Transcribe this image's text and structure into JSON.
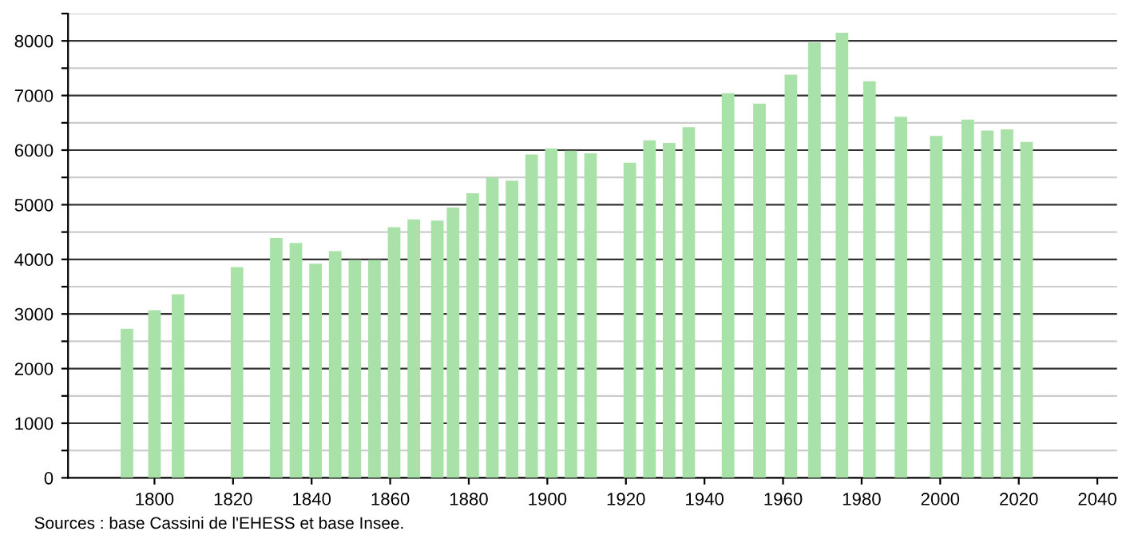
{
  "chart_data": {
    "type": "bar",
    "color": "#a8e2a8",
    "x": [
      1793,
      1800,
      1806,
      1821,
      1831,
      1836,
      1841,
      1846,
      1851,
      1856,
      1861,
      1866,
      1872,
      1876,
      1881,
      1886,
      1891,
      1896,
      1901,
      1906,
      1911,
      1921,
      1926,
      1931,
      1936,
      1946,
      1954,
      1962,
      1968,
      1975,
      1982,
      1990,
      1999,
      2007,
      2012,
      2017,
      2022
    ],
    "values": [
      2730,
      3070,
      3360,
      3860,
      4390,
      4300,
      3920,
      4150,
      3990,
      3990,
      4590,
      4730,
      4710,
      4950,
      5210,
      5500,
      5440,
      5920,
      6030,
      5990,
      5940,
      5770,
      6180,
      6130,
      6420,
      7040,
      6850,
      7380,
      7970,
      8150,
      7260,
      6610,
      6260,
      6560,
      6360,
      6380,
      6150
    ],
    "xlim": [
      1778,
      2045
    ],
    "xticks": [
      1800,
      1820,
      1840,
      1860,
      1880,
      1900,
      1920,
      1940,
      1960,
      1980,
      2000,
      2020,
      2040
    ],
    "ylim": [
      0,
      8500
    ],
    "yticks": [
      0,
      {
        "value": 500,
        "label": null
      },
      1000,
      {
        "value": 1500,
        "label": null
      },
      2000,
      {
        "value": 2500,
        "label": null
      },
      3000,
      {
        "value": 3500,
        "label": null
      },
      4000,
      {
        "value": 4500,
        "label": null
      },
      5000,
      {
        "value": 5500,
        "label": null
      },
      6000,
      {
        "value": 6500,
        "label": null
      },
      7000,
      {
        "value": 7500,
        "label": null
      },
      8000,
      {
        "value": 8500,
        "label": null
      }
    ],
    "grid": "y",
    "annotations": [
      "Sources : base Cassini de l'EHESS et base Insee."
    ]
  }
}
